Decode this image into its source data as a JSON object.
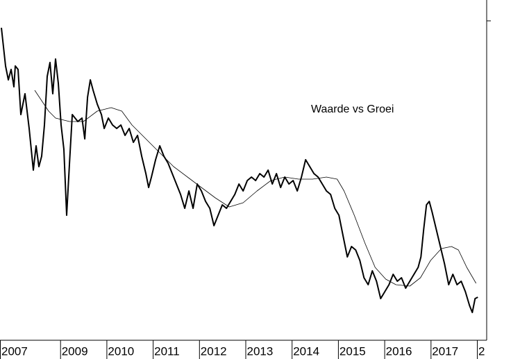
{
  "chart_data": {
    "type": "line",
    "title": "Waarde vs Groei",
    "xlim": [
      2007.7,
      2018.2
    ],
    "ylim": [
      0,
      490
    ],
    "yticks": [
      460
    ],
    "xticks": [
      {
        "value": 2007.7,
        "label": "2007"
      },
      2009,
      2010,
      2011,
      2012,
      2013,
      2014,
      2015,
      2016,
      2017,
      {
        "value": 2018,
        "label": "2"
      }
    ],
    "series": [
      {
        "color": "#000000",
        "width": 2,
        "x": [
          2007.73,
          2007.82,
          2007.88,
          2007.94,
          2008.0,
          2008.03,
          2008.09,
          2008.15,
          2008.24,
          2008.33,
          2008.42,
          2008.48,
          2008.54,
          2008.6,
          2008.66,
          2008.72,
          2008.78,
          2008.84,
          2008.9,
          2008.96,
          2009.02,
          2009.08,
          2009.14,
          2009.2,
          2009.26,
          2009.32,
          2009.38,
          2009.47,
          2009.53,
          2009.59,
          2009.65,
          2009.71,
          2009.8,
          2009.89,
          2009.95,
          2010.04,
          2010.13,
          2010.22,
          2010.31,
          2010.4,
          2010.49,
          2010.58,
          2010.67,
          2010.76,
          2010.85,
          2010.91,
          2010.97,
          2011.06,
          2011.15,
          2011.24,
          2011.33,
          2011.42,
          2011.51,
          2011.6,
          2011.69,
          2011.78,
          2011.87,
          2011.96,
          2012.05,
          2012.14,
          2012.23,
          2012.32,
          2012.41,
          2012.5,
          2012.59,
          2012.68,
          2012.77,
          2012.86,
          2012.95,
          2013.04,
          2013.13,
          2013.22,
          2013.31,
          2013.4,
          2013.49,
          2013.58,
          2013.67,
          2013.76,
          2013.85,
          2013.94,
          2014.03,
          2014.12,
          2014.21,
          2014.3,
          2014.39,
          2014.48,
          2014.57,
          2014.66,
          2014.75,
          2014.84,
          2014.93,
          2015.02,
          2015.11,
          2015.2,
          2015.29,
          2015.38,
          2015.47,
          2015.56,
          2015.65,
          2015.74,
          2015.83,
          2015.92,
          2016.01,
          2016.1,
          2016.19,
          2016.28,
          2016.37,
          2016.46,
          2016.55,
          2016.64,
          2016.73,
          2016.79,
          2016.85,
          2016.91,
          2016.97,
          2017.03,
          2017.12,
          2017.21,
          2017.3,
          2017.39,
          2017.48,
          2017.57,
          2017.66,
          2017.75,
          2017.84,
          2017.9,
          2017.96,
          2018.02
        ],
        "values": [
          450,
          395,
          375,
          390,
          365,
          395,
          390,
          325,
          355,
          305,
          245,
          280,
          250,
          265,
          310,
          380,
          400,
          355,
          405,
          370,
          310,
          275,
          180,
          255,
          325,
          320,
          315,
          320,
          290,
          350,
          375,
          360,
          340,
          325,
          305,
          320,
          310,
          305,
          310,
          295,
          305,
          285,
          295,
          265,
          240,
          220,
          235,
          260,
          280,
          265,
          255,
          240,
          225,
          210,
          190,
          215,
          190,
          225,
          215,
          200,
          190,
          165,
          180,
          195,
          190,
          200,
          210,
          225,
          215,
          230,
          235,
          230,
          240,
          235,
          245,
          225,
          240,
          220,
          235,
          225,
          230,
          215,
          235,
          260,
          250,
          240,
          235,
          225,
          215,
          210,
          190,
          180,
          150,
          120,
          135,
          130,
          115,
          90,
          80,
          100,
          85,
          60,
          70,
          80,
          95,
          85,
          90,
          75,
          85,
          95,
          105,
          120,
          160,
          195,
          200,
          185,
          160,
          135,
          110,
          80,
          95,
          80,
          85,
          70,
          50,
          40,
          60,
          62
        ]
      },
      {
        "color": "#000000",
        "width": 0.8,
        "x": [
          2008.45,
          2008.6,
          2008.75,
          2008.9,
          2009.2,
          2009.5,
          2009.8,
          2010.1,
          2010.33,
          2010.55,
          2010.85,
          2011.15,
          2011.45,
          2011.75,
          2012.05,
          2012.35,
          2012.65,
          2012.95,
          2013.25,
          2013.55,
          2013.85,
          2014.15,
          2014.45,
          2014.75,
          2014.98,
          2015.13,
          2015.35,
          2015.58,
          2015.8,
          2016.03,
          2016.25,
          2016.55,
          2016.78,
          2017.0,
          2017.23,
          2017.45,
          2017.6,
          2017.78,
          2017.98
        ],
        "values": [
          360,
          345,
          330,
          320,
          315,
          315,
          330,
          335,
          330,
          310,
          290,
          270,
          250,
          235,
          220,
          205,
          192,
          198,
          215,
          230,
          235,
          232,
          232,
          235,
          232,
          215,
          180,
          140,
          105,
          88,
          80,
          78,
          90,
          115,
          132,
          135,
          130,
          105,
          82
        ]
      }
    ]
  }
}
